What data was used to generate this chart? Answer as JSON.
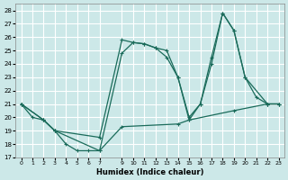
{
  "xlabel": "Humidex (Indice chaleur)",
  "background_color": "#cce8e8",
  "grid_color": "#ffffff",
  "line_color": "#1a6b5a",
  "xlim": [
    -0.5,
    23.5
  ],
  "ylim": [
    17,
    28.5
  ],
  "yticks": [
    17,
    18,
    19,
    20,
    21,
    22,
    23,
    24,
    25,
    26,
    27,
    28
  ],
  "xticks": [
    0,
    1,
    2,
    3,
    4,
    5,
    6,
    7,
    9,
    10,
    11,
    12,
    13,
    14,
    15,
    16,
    17,
    18,
    19,
    20,
    21,
    22,
    23
  ],
  "line1_x": [
    0,
    1,
    2,
    3,
    7,
    9,
    10,
    11,
    12,
    13,
    14,
    15,
    16,
    17,
    18,
    19,
    20,
    21,
    22,
    23
  ],
  "line1_y": [
    21,
    20,
    19.8,
    19,
    18.5,
    25.8,
    25.6,
    25.5,
    25.2,
    24.5,
    23.0,
    20.0,
    21.0,
    24.0,
    27.8,
    26.5,
    23.0,
    21.5,
    21.0,
    21.0
  ],
  "line2_x": [
    0,
    2,
    3,
    4,
    5,
    6,
    7,
    9,
    10,
    11,
    12,
    13,
    14,
    15,
    16,
    17,
    18,
    19,
    20,
    22,
    23
  ],
  "line2_y": [
    21,
    19.8,
    19,
    18,
    17.5,
    17.5,
    17.5,
    24.8,
    25.6,
    25.5,
    25.2,
    25.0,
    23.0,
    19.8,
    21.0,
    24.5,
    27.8,
    26.5,
    23.0,
    21.0,
    21.0
  ],
  "line3_x": [
    0,
    2,
    3,
    7,
    9,
    14,
    15,
    19,
    22,
    23
  ],
  "line3_y": [
    21,
    19.8,
    19.0,
    17.5,
    19.3,
    19.5,
    19.8,
    20.5,
    21.0,
    21.0
  ]
}
